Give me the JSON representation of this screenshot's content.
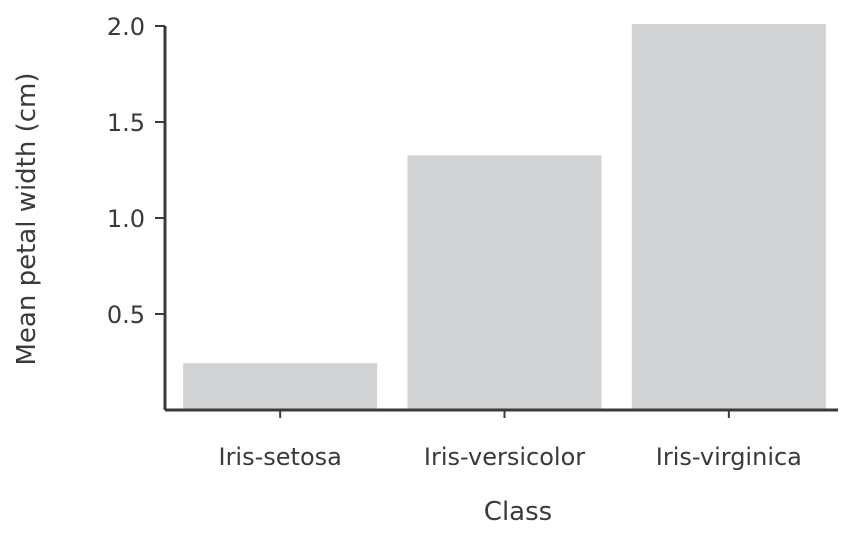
{
  "chart_data": {
    "type": "bar",
    "categories": [
      "Iris-setosa",
      "Iris-versicolor",
      "Iris-virginica"
    ],
    "values": [
      0.244,
      1.326,
      2.026
    ],
    "title": "",
    "xlabel": "Class",
    "ylabel": "Mean petal width (cm)",
    "ylim": [
      0.0,
      2.0
    ],
    "yticks": [
      "0.5",
      "1.0",
      "1.5",
      "2.0"
    ],
    "grid": false,
    "legend": "none",
    "colors": {
      "bar": "#d1d2d4",
      "axis": "#3a3a3a",
      "text": "#3a3a3a"
    }
  }
}
